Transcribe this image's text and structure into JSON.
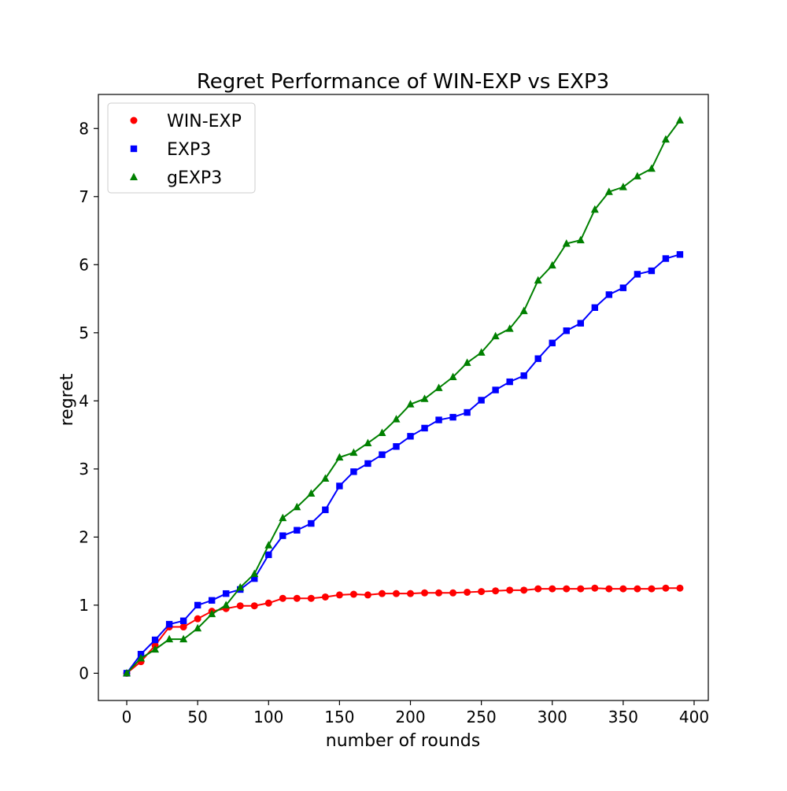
{
  "chart_data": {
    "type": "line",
    "title": "Regret Performance of WIN-EXP vs EXP3",
    "xlabel": "number of rounds",
    "ylabel": "regret",
    "xlim": [
      -20,
      410
    ],
    "ylim": [
      -0.4,
      8.5
    ],
    "xticks": [
      0,
      50,
      100,
      150,
      200,
      250,
      300,
      350,
      400
    ],
    "yticks": [
      0,
      1,
      2,
      3,
      4,
      5,
      6,
      7,
      8
    ],
    "grid": false,
    "legend_position": "upper-left",
    "x": [
      0,
      10,
      20,
      30,
      40,
      50,
      60,
      70,
      80,
      90,
      100,
      110,
      120,
      130,
      140,
      150,
      160,
      170,
      180,
      190,
      200,
      210,
      220,
      230,
      240,
      250,
      260,
      270,
      280,
      290,
      300,
      310,
      320,
      330,
      340,
      350,
      360,
      370,
      380,
      390
    ],
    "series": [
      {
        "name": "WIN-EXP",
        "color": "#ff0000",
        "marker": "circle",
        "values": [
          0.0,
          0.17,
          0.41,
          0.68,
          0.68,
          0.8,
          0.91,
          0.95,
          0.99,
          0.99,
          1.03,
          1.1,
          1.1,
          1.1,
          1.12,
          1.15,
          1.16,
          1.15,
          1.17,
          1.17,
          1.17,
          1.18,
          1.18,
          1.18,
          1.19,
          1.2,
          1.21,
          1.22,
          1.22,
          1.24,
          1.24,
          1.24,
          1.24,
          1.25,
          1.24,
          1.24,
          1.24,
          1.24,
          1.25,
          1.25
        ]
      },
      {
        "name": "EXP3",
        "color": "#0000ff",
        "marker": "square",
        "values": [
          0.0,
          0.28,
          0.49,
          0.72,
          0.77,
          1.0,
          1.07,
          1.17,
          1.23,
          1.39,
          1.74,
          2.02,
          2.1,
          2.2,
          2.4,
          2.75,
          2.96,
          3.08,
          3.21,
          3.33,
          3.48,
          3.6,
          3.72,
          3.76,
          3.83,
          4.01,
          4.16,
          4.28,
          4.37,
          4.62,
          4.85,
          5.03,
          5.14,
          5.37,
          5.56,
          5.66,
          5.86,
          5.91,
          6.09,
          6.15
        ]
      },
      {
        "name": "gEXP3",
        "color": "#008000",
        "marker": "triangle",
        "values": [
          0.0,
          0.22,
          0.35,
          0.5,
          0.5,
          0.66,
          0.87,
          1.0,
          1.26,
          1.46,
          1.88,
          2.28,
          2.44,
          2.64,
          2.86,
          3.17,
          3.24,
          3.38,
          3.53,
          3.73,
          3.95,
          4.03,
          4.19,
          4.35,
          4.56,
          4.71,
          4.95,
          5.06,
          5.32,
          5.77,
          5.99,
          6.31,
          6.36,
          6.81,
          7.07,
          7.14,
          7.3,
          7.41,
          7.84,
          8.12
        ]
      }
    ]
  }
}
